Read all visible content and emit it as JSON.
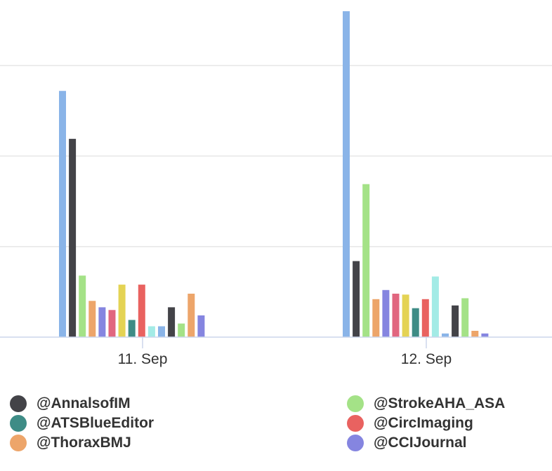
{
  "chart_data": {
    "type": "bar",
    "categories": [
      "11. Sep",
      "12. Sep"
    ],
    "ylim": [
      0,
      360
    ],
    "gridlines": [
      0,
      100,
      200,
      300
    ],
    "bar_colors": [
      "#8ab4e8",
      "#434348",
      "#a4e287",
      "#eda56a",
      "#8585e0",
      "#e1667f",
      "#e4d354",
      "#3e8c86",
      "#e96260",
      "#a3ebe6",
      "#8ab4e8",
      "#434348",
      "#a4e287",
      "#eda56a",
      "#8585e0"
    ],
    "bar_values": [
      [
        272,
        219,
        68,
        40,
        33,
        30,
        58,
        19,
        58,
        12,
        12,
        33,
        15,
        48,
        24
      ],
      [
        360,
        84,
        169,
        42,
        52,
        48,
        47,
        32,
        42,
        67,
        4,
        35,
        43,
        7,
        4
      ]
    ],
    "legend": [
      {
        "name": "@AnnalsofIM",
        "color": "#434348"
      },
      {
        "name": "@StrokeAHA_ASA",
        "color": "#a4e287"
      },
      {
        "name": "@ATSBlueEditor",
        "color": "#3e8c86"
      },
      {
        "name": "@CircImaging",
        "color": "#e96260"
      },
      {
        "name": "@ThoraxBMJ",
        "color": "#eda56a"
      },
      {
        "name": "@CCIJournal",
        "color": "#8585e0"
      }
    ]
  }
}
